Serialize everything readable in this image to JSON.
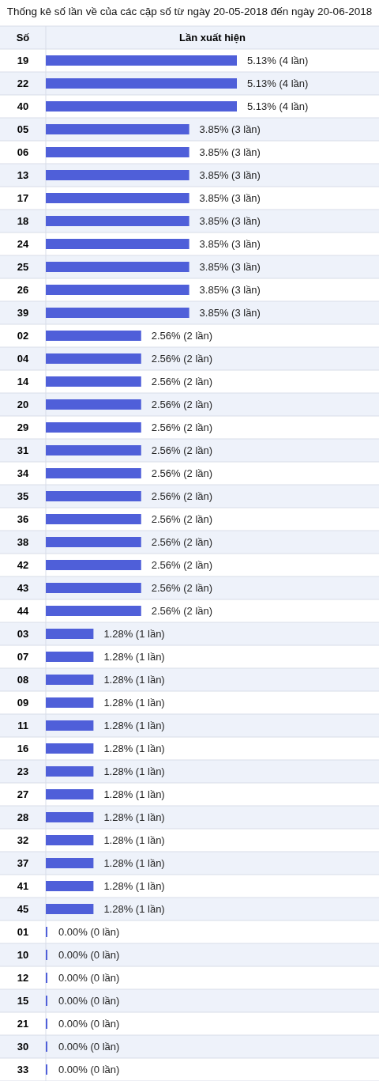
{
  "chart_data": {
    "type": "bar",
    "orientation": "horizontal",
    "title": "Thống kê số lần về của các cặp số từ ngày 20-05-2018 đến ngày 20-06-2018",
    "ylabel": "Số",
    "xlabel": "Lần xuất hiện",
    "color": "#4f5fd9",
    "categories": [
      "19",
      "22",
      "40",
      "05",
      "06",
      "13",
      "17",
      "18",
      "24",
      "25",
      "26",
      "39",
      "02",
      "04",
      "14",
      "20",
      "29",
      "31",
      "34",
      "35",
      "36",
      "38",
      "42",
      "43",
      "44",
      "03",
      "07",
      "08",
      "09",
      "11",
      "16",
      "23",
      "27",
      "28",
      "32",
      "37",
      "41",
      "45",
      "01",
      "10",
      "12",
      "15",
      "21",
      "30",
      "33"
    ],
    "values": [
      5.13,
      5.13,
      5.13,
      3.85,
      3.85,
      3.85,
      3.85,
      3.85,
      3.85,
      3.85,
      3.85,
      3.85,
      2.56,
      2.56,
      2.56,
      2.56,
      2.56,
      2.56,
      2.56,
      2.56,
      2.56,
      2.56,
      2.56,
      2.56,
      2.56,
      1.28,
      1.28,
      1.28,
      1.28,
      1.28,
      1.28,
      1.28,
      1.28,
      1.28,
      1.28,
      1.28,
      1.28,
      1.28,
      0,
      0,
      0,
      0,
      0,
      0,
      0
    ],
    "value_labels": [
      "5.13% (4 lần)",
      "5.13% (4 lần)",
      "5.13% (4 lần)",
      "3.85% (3 lần)",
      "3.85% (3 lần)",
      "3.85% (3 lần)",
      "3.85% (3 lần)",
      "3.85% (3 lần)",
      "3.85% (3 lần)",
      "3.85% (3 lần)",
      "3.85% (3 lần)",
      "3.85% (3 lần)",
      "2.56% (2 lần)",
      "2.56% (2 lần)",
      "2.56% (2 lần)",
      "2.56% (2 lần)",
      "2.56% (2 lần)",
      "2.56% (2 lần)",
      "2.56% (2 lần)",
      "2.56% (2 lần)",
      "2.56% (2 lần)",
      "2.56% (2 lần)",
      "2.56% (2 lần)",
      "2.56% (2 lần)",
      "2.56% (2 lần)",
      "1.28% (1 lần)",
      "1.28% (1 lần)",
      "1.28% (1 lần)",
      "1.28% (1 lần)",
      "1.28% (1 lần)",
      "1.28% (1 lần)",
      "1.28% (1 lần)",
      "1.28% (1 lần)",
      "1.28% (1 lần)",
      "1.28% (1 lần)",
      "1.28% (1 lần)",
      "1.28% (1 lần)",
      "1.28% (1 lần)",
      "0.00% (0 lần)",
      "0.00% (0 lần)",
      "0.00% (0 lần)",
      "0.00% (0 lần)",
      "0.00% (0 lần)",
      "0.00% (0 lần)",
      "0.00% (0 lần)"
    ]
  }
}
